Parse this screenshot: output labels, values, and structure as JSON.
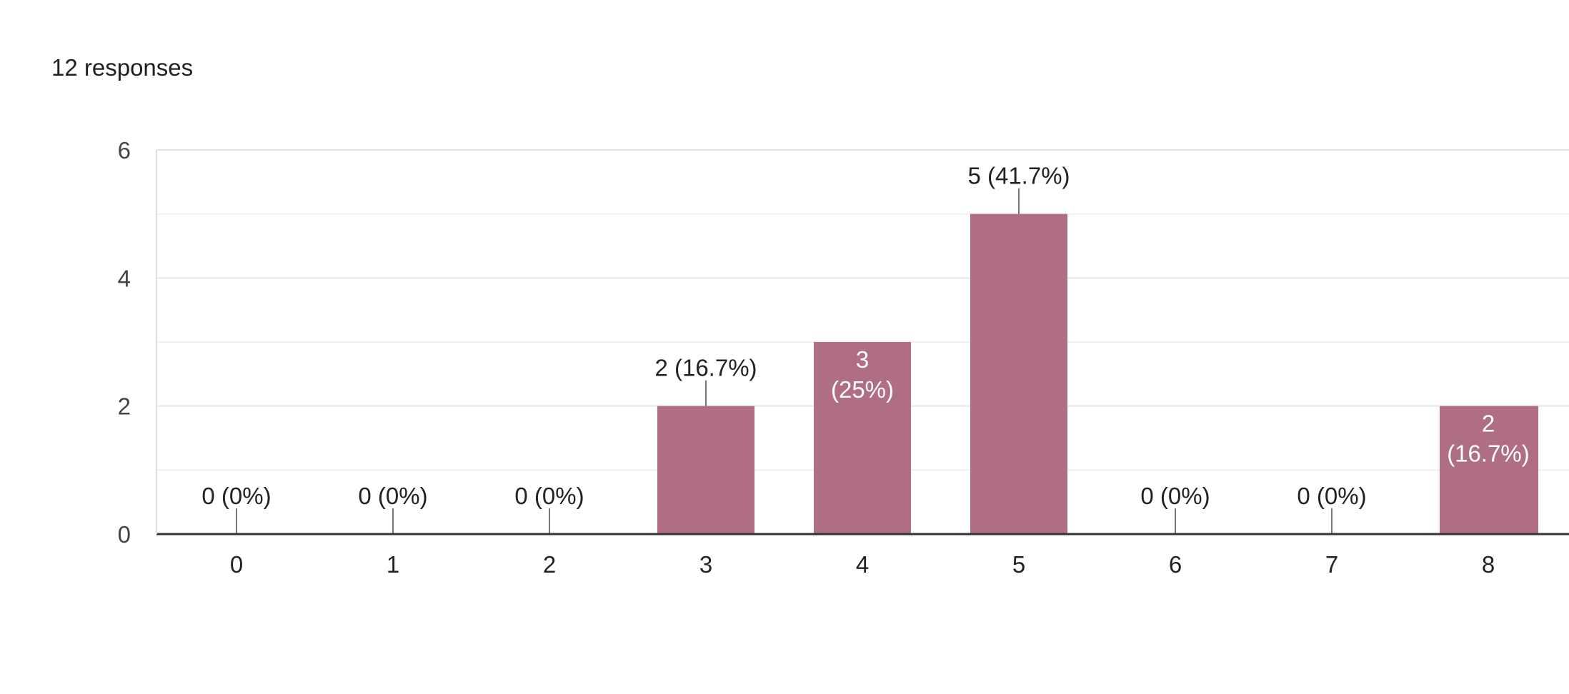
{
  "summary": {
    "responses_label": "12 responses"
  },
  "chart_data": {
    "type": "bar",
    "categories": [
      "0",
      "1",
      "2",
      "3",
      "4",
      "5",
      "6",
      "7",
      "8"
    ],
    "values": [
      0,
      0,
      0,
      2,
      3,
      5,
      0,
      0,
      2
    ],
    "percent_labels": [
      "0%",
      "0%",
      "0%",
      "16.7%",
      "25%",
      "41.7%",
      "0%",
      "0%",
      "16.7%"
    ],
    "ylim": [
      0,
      6
    ],
    "yticks": [
      0,
      2,
      4,
      6
    ],
    "grid": true,
    "bar_color": "#b06e85",
    "title": "",
    "xlabel": "",
    "ylabel": ""
  }
}
